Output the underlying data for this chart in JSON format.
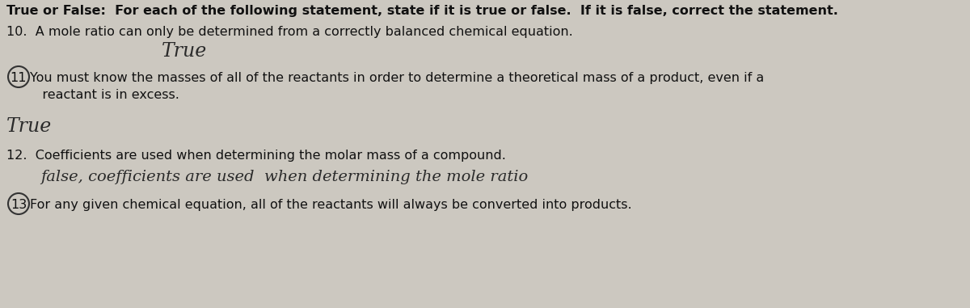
{
  "bg_color": "#ccc8c0",
  "title": "True or False:  For each of the following statement, state if it is true or false.  If it is false, correct the statement.",
  "q10": "10.  A mole ratio can only be determined from a correctly balanced chemical equation.",
  "a10": "True",
  "q11_circle": "11",
  "q11": "You must know the masses of all of the reactants in order to determine a theoretical mass of a product, even if a\n   reactant is in excess.",
  "a11": "True",
  "q12": "12.  Coefficients are used when determining the molar mass of a compound.",
  "a12": "false, coefficients are used  when determining the mole ratio",
  "q13_circle": "13",
  "q13": "For any given chemical equation, all of the reactants will always be converted into products.",
  "title_fontsize": 11.5,
  "body_fontsize": 11.5,
  "handwritten_fontsize": 17,
  "text_color": "#111111",
  "hand_color": "#222222",
  "circle_color": "#333333"
}
